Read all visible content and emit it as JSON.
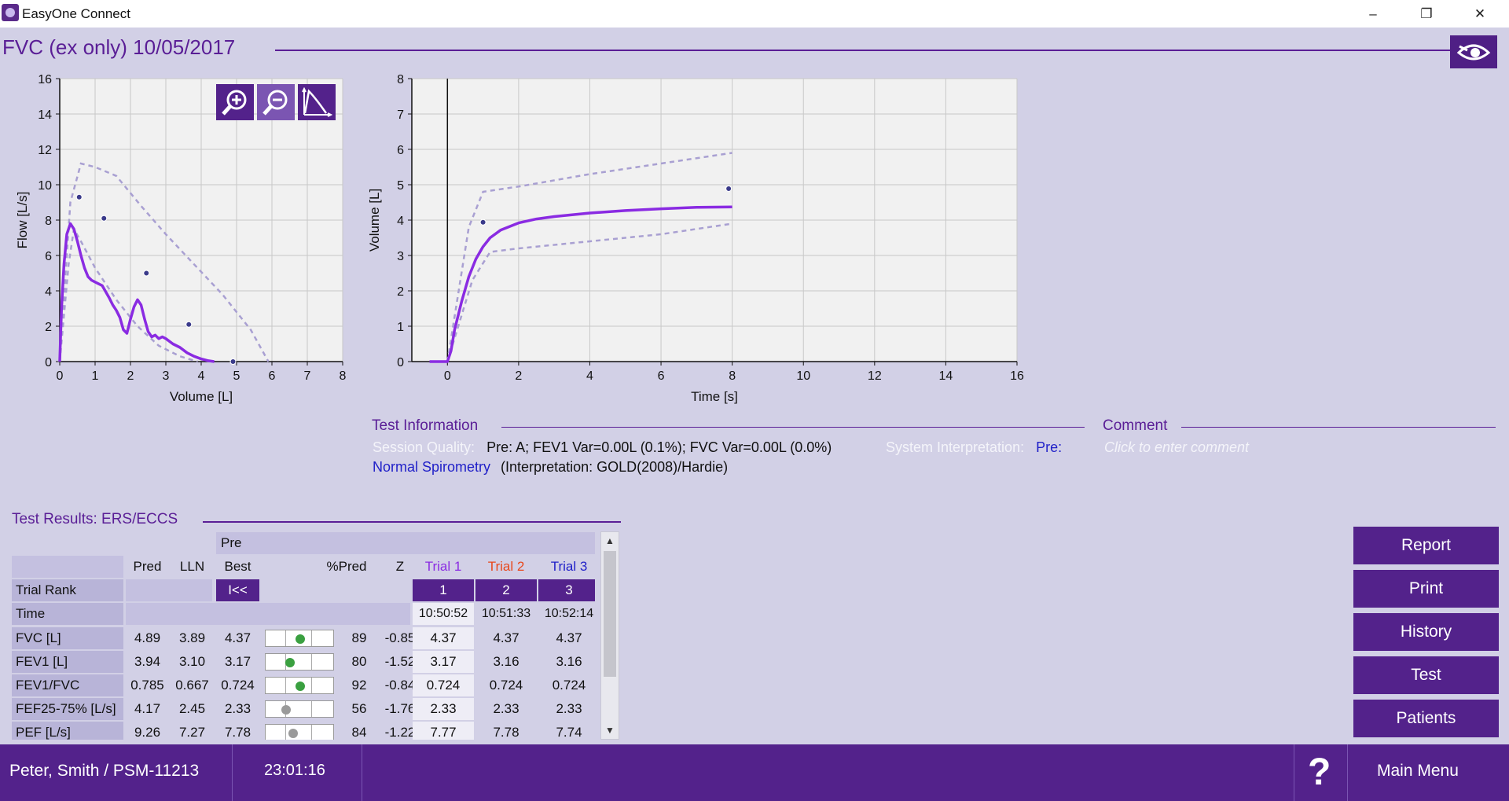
{
  "window": {
    "title": "EasyOne Connect",
    "minimize": "–",
    "restore": "❐",
    "close": "✕"
  },
  "header": {
    "title": "FVC (ex only)  10/05/2017"
  },
  "colors": {
    "accent": "#53228b",
    "trial1": "#8a2be2",
    "trial2": "#e8481c",
    "trial3": "#1f1fc8",
    "good": "#3aa040"
  },
  "chart_data": [
    {
      "type": "line",
      "title": "",
      "xlabel": "Volume [L]",
      "ylabel": "Flow [L/s]",
      "xlim": [
        0,
        8
      ],
      "ylim": [
        0,
        16
      ],
      "x_ticks": [
        "0",
        "1",
        "2",
        "3",
        "4",
        "5",
        "6",
        "7",
        "8"
      ],
      "y_ticks": [
        "0",
        "2",
        "4",
        "6",
        "8",
        "10",
        "12",
        "14",
        "16"
      ],
      "grid": true,
      "series": [
        {
          "x": [
            0,
            0.05,
            0.12,
            0.2,
            0.3,
            0.4,
            0.5,
            0.6,
            0.7,
            0.8,
            0.9,
            1.0,
            1.2,
            1.4,
            1.5,
            1.6,
            1.7,
            1.8,
            1.9,
            2.0,
            2.1,
            2.2,
            2.3,
            2.4,
            2.5,
            2.6,
            2.7,
            2.8,
            2.9,
            3.0,
            3.2,
            3.4,
            3.6,
            3.8,
            4.0,
            4.2,
            4.37
          ],
          "y": [
            0,
            3,
            5.5,
            7.2,
            7.8,
            7.5,
            6.8,
            6.0,
            5.3,
            4.8,
            4.6,
            4.5,
            4.3,
            3.6,
            3.2,
            2.9,
            2.5,
            1.8,
            1.6,
            2.4,
            3.1,
            3.5,
            3.2,
            2.4,
            1.7,
            1.4,
            1.5,
            1.3,
            1.4,
            1.3,
            1.0,
            0.8,
            0.5,
            0.3,
            0.15,
            0.05,
            0
          ]
        }
      ],
      "predicted_envelope": {
        "upper": {
          "x": [
            0,
            0.3,
            0.6,
            1.0,
            1.6,
            2.3,
            3.0,
            3.8,
            4.6,
            5.4,
            5.9
          ],
          "y": [
            0,
            9.0,
            11.2,
            11.0,
            10.5,
            8.8,
            7.2,
            5.5,
            3.8,
            1.8,
            0
          ]
        },
        "lower": {
          "x": [
            0,
            0.25,
            0.4,
            0.6,
            1.0,
            1.6,
            2.2,
            2.8,
            3.4,
            3.9
          ],
          "y": [
            0,
            5.5,
            7.5,
            6.8,
            5.3,
            3.5,
            2.0,
            0.9,
            0.3,
            0
          ]
        }
      },
      "predicted_points": {
        "x": [
          0.55,
          1.25,
          2.45,
          3.65,
          4.9
        ],
        "y": [
          9.3,
          8.1,
          5.0,
          2.1,
          0.0
        ]
      }
    },
    {
      "type": "line",
      "title": "",
      "xlabel": "Time  [s]",
      "ylabel": "Volume [L]",
      "xlim": [
        -1,
        16
      ],
      "ylim": [
        0,
        8
      ],
      "x_ticks": [
        "0",
        "2",
        "4",
        "6",
        "8",
        "10",
        "12",
        "14",
        "16"
      ],
      "y_ticks": [
        "0",
        "1",
        "2",
        "3",
        "4",
        "5",
        "6",
        "7",
        "8"
      ],
      "grid": true,
      "series": [
        {
          "x": [
            -0.5,
            0,
            0.1,
            0.2,
            0.4,
            0.6,
            0.8,
            1.0,
            1.2,
            1.5,
            2.0,
            2.5,
            3.0,
            4.0,
            5.0,
            6.0,
            7.0,
            8.0
          ],
          "y": [
            0,
            0,
            0.3,
            0.9,
            1.7,
            2.4,
            2.9,
            3.25,
            3.5,
            3.72,
            3.92,
            4.03,
            4.1,
            4.2,
            4.27,
            4.32,
            4.36,
            4.37
          ]
        }
      ],
      "predicted_envelope": {
        "upper": {
          "x": [
            0,
            0.6,
            1.0,
            2,
            4,
            6,
            8
          ],
          "y": [
            0,
            3.8,
            4.8,
            4.95,
            5.3,
            5.6,
            5.9
          ]
        },
        "lower": {
          "x": [
            0,
            0.7,
            1.2,
            2,
            4,
            6,
            8
          ],
          "y": [
            0,
            2.3,
            3.1,
            3.2,
            3.4,
            3.6,
            3.9
          ]
        }
      },
      "predicted_points": {
        "x": [
          1.0,
          7.9
        ],
        "y": [
          3.94,
          4.89
        ]
      }
    }
  ],
  "test_info": {
    "heading": "Test Information",
    "session_label": "Session Quality:",
    "session_value": "Pre: A;  FEV1 Var=0.00L (0.1%); FVC Var=0.00L (0.0%)",
    "sys_label": "System Interpretation:",
    "sys_value": "Pre:",
    "interpretation": "Normal Spirometry",
    "interpretation_note": "(Interpretation: GOLD(2008)/Hardie)"
  },
  "comment": {
    "heading": "Comment",
    "placeholder": "Click to enter comment"
  },
  "results": {
    "heading": "Test Results:   ERS/ECCS",
    "group_label": "Pre",
    "columns": [
      "Pred",
      "LLN",
      "Best",
      "%Pred",
      "Z",
      "Trial 1",
      "Trial 2",
      "Trial 3"
    ],
    "trial_rank_label": "Trial Rank",
    "rank_button": "I<<",
    "ranks": [
      "1",
      "2",
      "3"
    ],
    "time_label": "Time",
    "times": [
      "10:50:52",
      "10:51:33",
      "10:52:14"
    ],
    "rows": [
      {
        "label": "FVC [L]",
        "pred": "4.89",
        "lln": "3.89",
        "best": "4.37",
        "ind": 0.5,
        "ind_color": "#3aa040",
        "pctpred": "89",
        "z": "-0.85",
        "t1": "4.37",
        "t2": "4.37",
        "t3": "4.37"
      },
      {
        "label": "FEV1 [L]",
        "pred": "3.94",
        "lln": "3.10",
        "best": "3.17",
        "ind": 0.35,
        "ind_color": "#3aa040",
        "pctpred": "80",
        "z": "-1.52",
        "t1": "3.17",
        "t2": "3.16",
        "t3": "3.16"
      },
      {
        "label": "FEV1/FVC",
        "pred": "0.785",
        "lln": "0.667",
        "best": "0.724",
        "ind": 0.5,
        "ind_color": "#3aa040",
        "pctpred": "92",
        "z": "-0.84",
        "t1": "0.724",
        "t2": "0.724",
        "t3": "0.724"
      },
      {
        "label": "FEF25-75% [L/s]",
        "pred": "4.17",
        "lln": "2.45",
        "best": "2.33",
        "ind": 0.3,
        "ind_color": "#9a9a9a",
        "pctpred": "56",
        "z": "-1.76",
        "t1": "2.33",
        "t2": "2.33",
        "t3": "2.33"
      },
      {
        "label": "PEF [L/s]",
        "pred": "9.26",
        "lln": "7.27",
        "best": "7.78",
        "ind": 0.4,
        "ind_color": "#9a9a9a",
        "pctpred": "84",
        "z": "-1.22",
        "t1": "7.77",
        "t2": "7.78",
        "t3": "7.74"
      }
    ]
  },
  "side_buttons": [
    "Report",
    "Print",
    "History",
    "Test",
    "Patients"
  ],
  "footer": {
    "patient": "Peter, Smith / PSM-11213",
    "clock": "23:01:16",
    "help": "?",
    "main_menu": "Main Menu"
  }
}
